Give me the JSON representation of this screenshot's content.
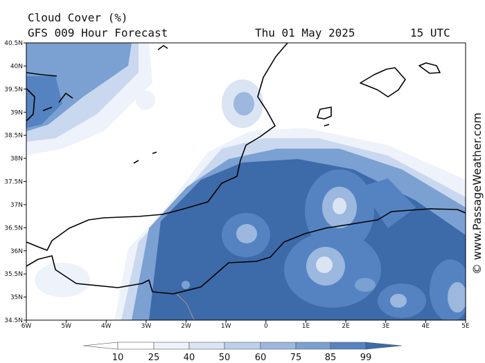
{
  "header": {
    "title": "Cloud Cover (%)",
    "subtitle": "GFS 009 Hour Forecast",
    "date": "Thu 01 May 2025",
    "time": "15 UTC"
  },
  "map": {
    "lat_labels": [
      "40.5N",
      "40N",
      "39.5N",
      "39N",
      "38.5N",
      "38N",
      "37.5N",
      "37N",
      "36.5N",
      "36N",
      "35.5N",
      "35N",
      "34.5N"
    ],
    "lon_labels": [
      "6W",
      "5W",
      "4W",
      "3W",
      "2W",
      "1W",
      "0",
      "1E",
      "2E",
      "3E",
      "4E",
      "5E"
    ]
  },
  "colorbar": {
    "labels": [
      "10",
      "25",
      "40",
      "50",
      "60",
      "75",
      "85",
      "99"
    ]
  },
  "credit": "© www.PassageWeather.com"
}
